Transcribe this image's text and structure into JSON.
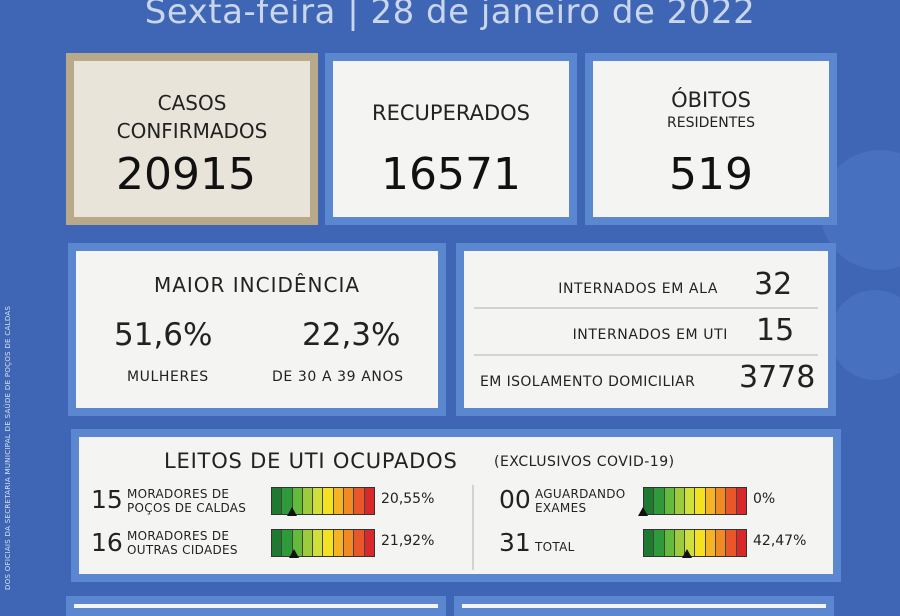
{
  "header": {
    "date": "Sexta-feira | 28 de janeiro de 2022"
  },
  "side_text": "DOS OFICIAIS DA SECRETARIA MUNICIPAL DE SAÚDE DE POÇOS DE CALDAS",
  "casos": {
    "label_line1": "CASOS",
    "label_line2": "CONFIRMADOS",
    "value": "20915"
  },
  "recuperados": {
    "label": "RECUPERADOS",
    "value": "16571"
  },
  "obitos": {
    "label": "ÓBITOS",
    "sublabel": "RESIDENTES",
    "value": "519"
  },
  "incidencia": {
    "title": "MAIOR INCIDÊNCIA",
    "left_value": "51,6%",
    "left_label": "MULHERES",
    "right_value": "22,3%",
    "right_label": "DE 30 A 39 ANOS"
  },
  "internacoes": [
    {
      "label": "INTERNADOS EM ALA",
      "value": "32"
    },
    {
      "label": "INTERNADOS EM UTI",
      "value": "15"
    },
    {
      "label": "EM ISOLAMENTO DOMICILIAR",
      "value": "3778"
    }
  ],
  "leitos": {
    "title": "LEITOS DE UTI OCUPADOS",
    "subtitle": "(EXCLUSIVOS COVID-19)",
    "items": [
      {
        "count": "15",
        "line1": "MORADORES DE",
        "line2": "POÇOS DE CALDAS",
        "percent": "20,55%",
        "level": 0.2055
      },
      {
        "count": "16",
        "line1": "MORADORES DE",
        "line2": "OUTRAS CIDADES",
        "percent": "21,92%",
        "level": 0.2192
      },
      {
        "count": "00",
        "line1": "AGUARDANDO",
        "line2": "EXAMES",
        "percent": "0%",
        "level": 0
      },
      {
        "count": "31",
        "line1": "TOTAL",
        "line2": "",
        "percent": "42,47%",
        "level": 0.4247
      }
    ],
    "scale_colors": [
      "#1e7a2e",
      "#2f9a3a",
      "#62bb3a",
      "#9ccc3c",
      "#cfe03a",
      "#f4e11f",
      "#f6b323",
      "#f18a23",
      "#e8562a",
      "#d9282a"
    ]
  }
}
